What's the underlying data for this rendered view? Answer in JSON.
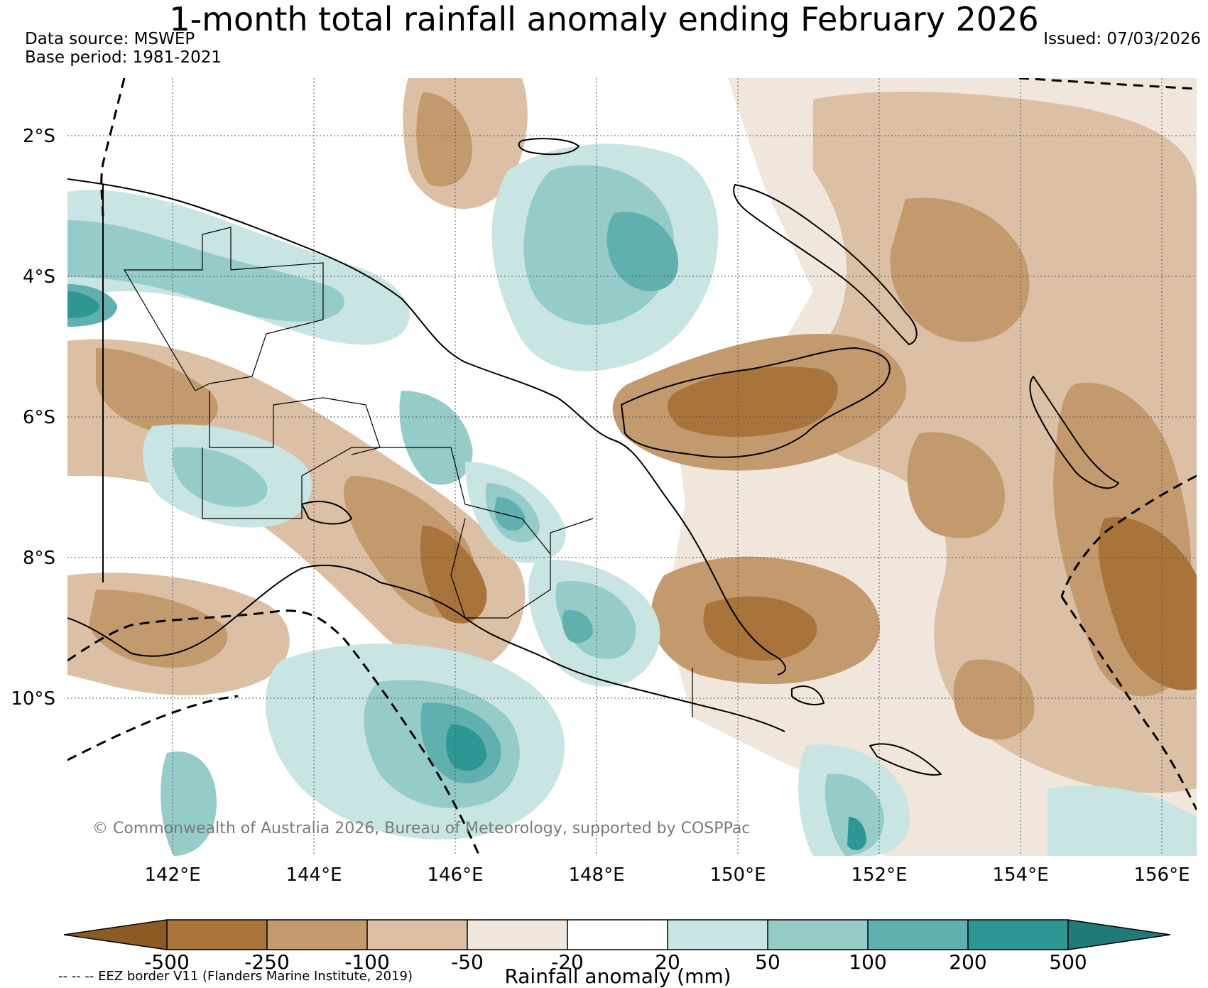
{
  "header": {
    "title": "1-month total rainfall anomaly ending February 2026",
    "source": "Data source: MSWEP",
    "base_period": "Base period: 1981-2021",
    "issued": "Issued: 07/03/2026"
  },
  "map": {
    "lat_labels": [
      "2°S",
      "4°S",
      "6°S",
      "8°S",
      "10°S"
    ],
    "lon_labels": [
      "142°E",
      "144°E",
      "146°E",
      "148°E",
      "150°E",
      "152°E",
      "154°E",
      "156°E"
    ],
    "copyright": "© Commonwealth of Australia 2026, Bureau of Meteorology, supported by COSPPac"
  },
  "legend": {
    "label": "Rainfall anomaly (mm)",
    "eez_note": "-- -- -- EEZ border V11 (Flanders Marine Institute, 2019)",
    "ticks": [
      "-500",
      "-250",
      "-100",
      "-50",
      "-20",
      "20",
      "50",
      "100",
      "200",
      "500"
    ],
    "colors": {
      "below_min": "#8c5a24",
      "bin_m500_m250": "#a9733c",
      "bin_m250_m100": "#c39a6e",
      "bin_m100_m50": "#dbc0a5",
      "bin_m50_m20": "#f1e6dc",
      "bin_m20_20": "#ffffff",
      "bin_20_50": "#c8e5e3",
      "bin_50_100": "#95cbc9",
      "bin_100_200": "#5fb0ae",
      "bin_200_500": "#2e9793",
      "above_max": "#217a77"
    }
  }
}
